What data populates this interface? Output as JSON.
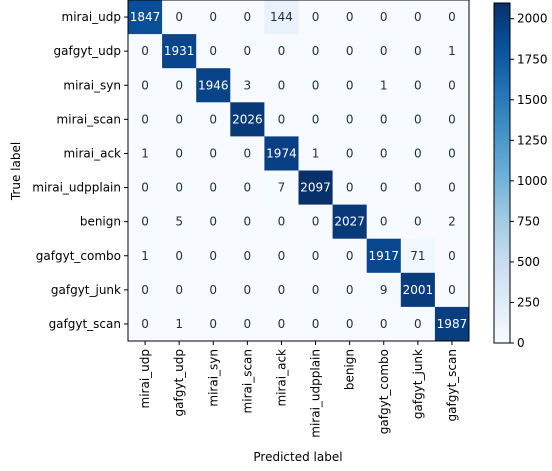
{
  "chart_data": {
    "type": "heatmap",
    "title": "",
    "xlabel": "Predicted label",
    "ylabel": "True label",
    "x_categories": [
      "mirai_udp",
      "gafgyt_udp",
      "mirai_syn",
      "mirai_scan",
      "mirai_ack",
      "mirai_udpplain",
      "benign",
      "gafgyt_combo",
      "gafgyt_junk",
      "gafgyt_scan"
    ],
    "y_categories": [
      "mirai_udp",
      "gafgyt_udp",
      "mirai_syn",
      "mirai_scan",
      "mirai_ack",
      "mirai_udpplain",
      "benign",
      "gafgyt_combo",
      "gafgyt_junk",
      "gafgyt_scan"
    ],
    "values": [
      [
        1847,
        0,
        0,
        0,
        144,
        0,
        0,
        0,
        0,
        0
      ],
      [
        0,
        1931,
        0,
        0,
        0,
        0,
        0,
        0,
        0,
        1
      ],
      [
        0,
        0,
        1946,
        3,
        0,
        0,
        0,
        1,
        0,
        0
      ],
      [
        0,
        0,
        0,
        2026,
        0,
        0,
        0,
        0,
        0,
        0
      ],
      [
        1,
        0,
        0,
        0,
        1974,
        1,
        0,
        0,
        0,
        0
      ],
      [
        0,
        0,
        0,
        0,
        7,
        2097,
        0,
        0,
        0,
        0
      ],
      [
        0,
        5,
        0,
        0,
        0,
        0,
        2027,
        0,
        0,
        2
      ],
      [
        1,
        0,
        0,
        0,
        0,
        0,
        0,
        1917,
        71,
        0
      ],
      [
        0,
        0,
        0,
        0,
        0,
        0,
        0,
        9,
        2001,
        0
      ],
      [
        0,
        1,
        0,
        0,
        0,
        0,
        0,
        0,
        0,
        1987
      ]
    ],
    "colorbar": {
      "range": [
        0,
        2097
      ],
      "ticks": [
        0,
        250,
        500,
        750,
        1000,
        1250,
        1500,
        1750,
        2000
      ],
      "colormap": "Blues",
      "low_color": "#f7fbff",
      "high_color": "#08306b"
    },
    "grid": false
  }
}
